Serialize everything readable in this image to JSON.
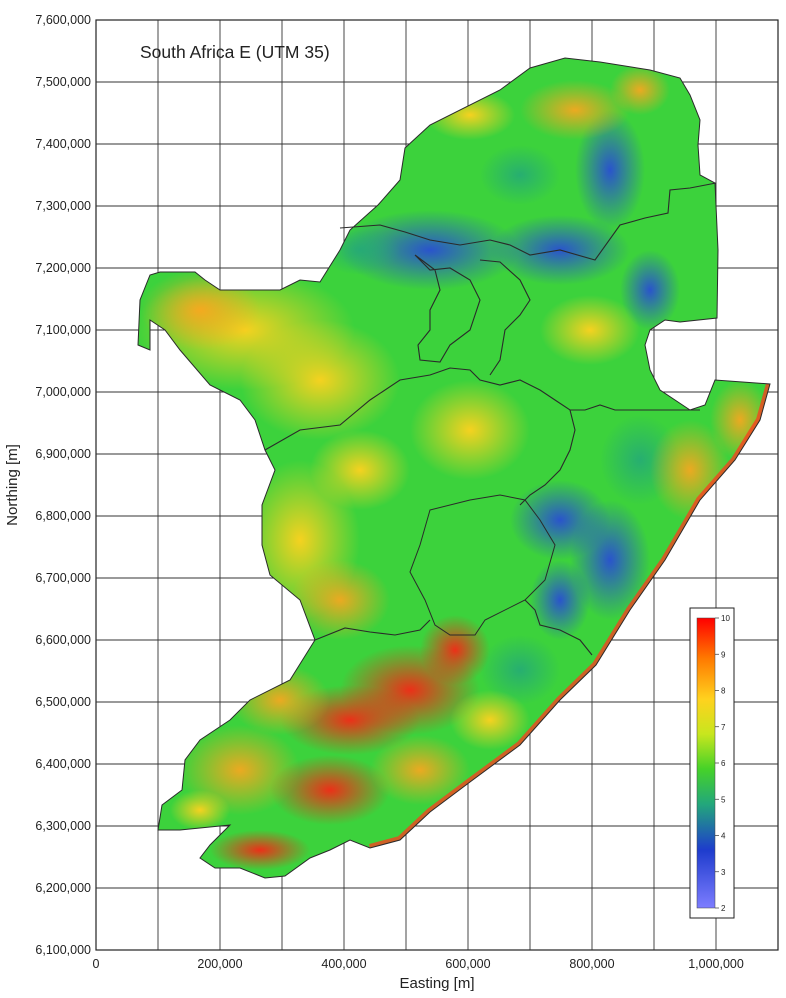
{
  "map": {
    "title": "South Africa E (UTM 35)",
    "x_axis": {
      "label": "Easting [m]",
      "range": [
        0,
        1100000
      ],
      "ticks": [
        0,
        200000,
        400000,
        600000,
        800000,
        1000000
      ],
      "tick_labels": [
        "0",
        "200,000",
        "400,000",
        "600,000",
        "800,000",
        "1,000,000"
      ]
    },
    "y_axis": {
      "label": "Northing [m]",
      "range": [
        6100000,
        7600000
      ],
      "ticks": [
        6100000,
        6200000,
        6300000,
        6400000,
        6500000,
        6600000,
        6700000,
        6800000,
        6900000,
        7000000,
        7100000,
        7200000,
        7300000,
        7400000,
        7500000,
        7600000
      ],
      "tick_labels": [
        "6,100,000",
        "6,200,000",
        "6,300,000",
        "6,400,000",
        "6,500,000",
        "6,600,000",
        "6,700,000",
        "6,800,000",
        "6,900,000",
        "7,000,000",
        "7,100,000",
        "7,200,000",
        "7,300,000",
        "7,400,000",
        "7,500,000",
        "7,600,000"
      ]
    },
    "grid": true,
    "grid_spacing_m": 100000,
    "colorbar": {
      "min": 2,
      "max": 10,
      "labels": [
        "10",
        "9",
        "8",
        "7",
        "6",
        "5",
        "4",
        "3",
        "2"
      ],
      "colors": [
        "#ff0000",
        "#ff7a00",
        "#ffd21e",
        "#c8e61e",
        "#46d228",
        "#23a87a",
        "#1e3ccd",
        "#7d7dff"
      ],
      "placement": "bottom-right"
    },
    "colors": {
      "low": "#2846dc",
      "mid": "#3cd23c",
      "high": "#ff1e14",
      "border": "#2a2a2a"
    }
  }
}
